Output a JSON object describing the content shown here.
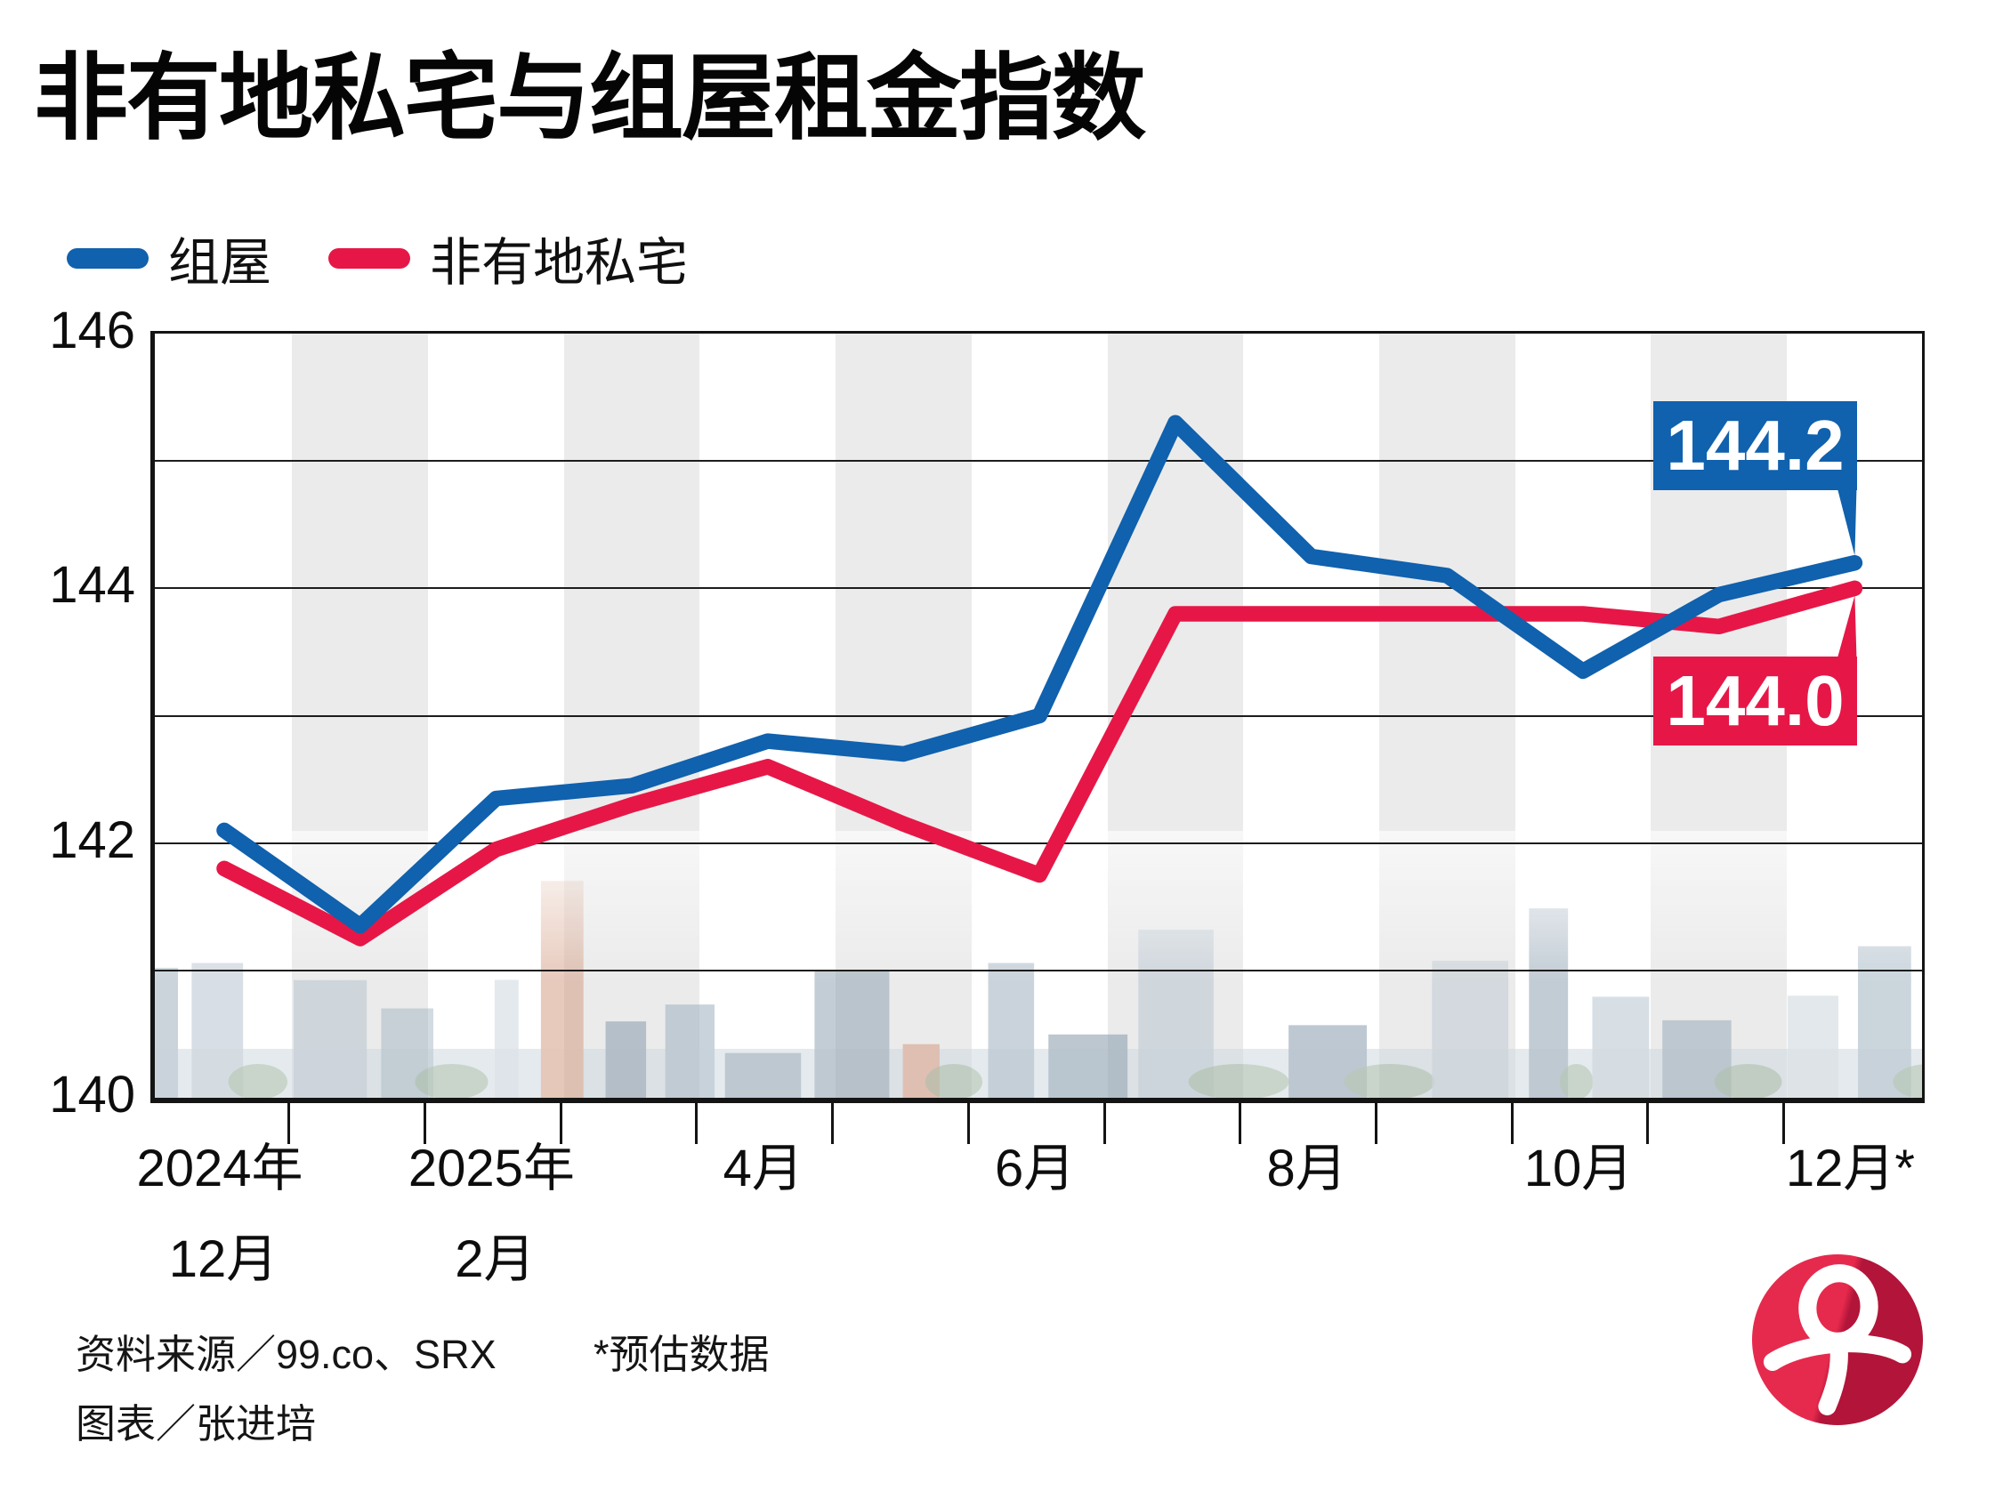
{
  "title": "非有地私宅与组屋租金指数",
  "legend": [
    {
      "label": "组屋",
      "color": "#1061ae"
    },
    {
      "label": "非有地私宅",
      "color": "#e61747"
    }
  ],
  "chart_data": {
    "type": "line",
    "categories": [
      "2024年12月",
      "2025年1月",
      "2025年2月",
      "2025年3月",
      "2025年4月",
      "2025年5月",
      "2025年6月",
      "2025年7月",
      "2025年8月",
      "2025年9月",
      "2025年10月",
      "2025年11月",
      "2025年12月*"
    ],
    "series": [
      {
        "name": "组屋",
        "color": "#1061ae",
        "values": [
          142.1,
          141.35,
          142.35,
          142.45,
          142.8,
          142.7,
          143.0,
          145.3,
          144.25,
          144.1,
          143.35,
          143.95,
          144.2
        ]
      },
      {
        "name": "非有地私宅",
        "color": "#e61747",
        "values": [
          141.8,
          141.25,
          141.95,
          142.3,
          142.6,
          142.15,
          141.75,
          143.8,
          143.8,
          143.8,
          143.8,
          143.7,
          144.0
        ]
      }
    ],
    "ylim": [
      140,
      146
    ],
    "ytick_values": [
      146,
      144,
      142,
      140
    ],
    "grid_step": 1,
    "grid": true,
    "background_stripes": {
      "color": "#ebebeb",
      "gray_months": [
        1,
        3,
        5,
        7,
        9,
        11
      ]
    },
    "x_labels": [
      {
        "top": "2024年",
        "bottom": "12月",
        "month": 0
      },
      {
        "top": "2025年",
        "bottom": "2月",
        "month": 2
      },
      {
        "top": "4月",
        "month": 4
      },
      {
        "top": "6月",
        "month": 6
      },
      {
        "top": "8月",
        "month": 8
      },
      {
        "top": "10月",
        "month": 10
      },
      {
        "top": "12月*",
        "month": 12
      }
    ],
    "end_labels": [
      {
        "text": "144.2",
        "series": "组屋",
        "color": "#1061ae"
      },
      {
        "text": "144.0",
        "series": "非有地私宅",
        "color": "#e61747"
      }
    ],
    "legend_position": "top-left"
  },
  "footer": {
    "source": "资料来源／99.co、SRX",
    "note": "*预估数据",
    "credit": "图表／张进培"
  },
  "logo": {
    "char": "早",
    "name": "zaobao-logo",
    "color_light": "#e62a4d",
    "color_dark": "#b21539"
  }
}
